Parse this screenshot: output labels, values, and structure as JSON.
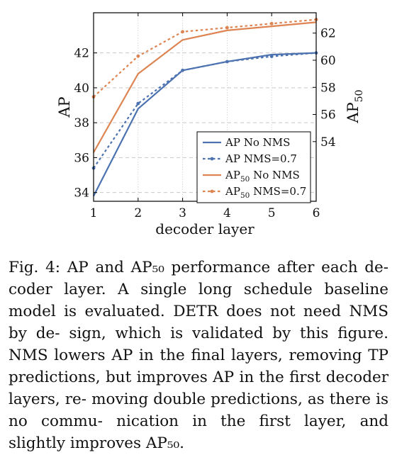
{
  "chart_data": {
    "type": "line",
    "x": [
      1,
      2,
      3,
      4,
      5,
      6
    ],
    "xlabel": "decoder layer",
    "ylabel_left": "AP",
    "ylabel_right_base": "AP",
    "ylabel_right_sub": "50",
    "xlim": [
      1,
      6
    ],
    "ylim_left": [
      33.5,
      44.3
    ],
    "ylim_right": [
      49.6,
      63.5
    ],
    "xticks": [
      "1",
      "2",
      "3",
      "4",
      "5",
      "6"
    ],
    "yticks_left": [
      "34",
      "36",
      "38",
      "40",
      "42"
    ],
    "yticks_right": [
      "54",
      "56",
      "58",
      "60",
      "62"
    ],
    "grid": "horizontal dashed",
    "legend_position": "bottom-right",
    "series": [
      {
        "name": "AP No NMS",
        "legend_base": "AP",
        "legend_sub": "",
        "legend_rest": " No NMS",
        "axis": "left",
        "style": "solid",
        "color": "#4c72b0",
        "values": [
          33.8,
          38.8,
          41.0,
          41.5,
          41.9,
          42.0
        ]
      },
      {
        "name": "AP NMS=0.7",
        "legend_base": "AP",
        "legend_sub": "",
        "legend_rest": " NMS=0.7",
        "axis": "left",
        "style": "dotted",
        "color": "#4c72b0",
        "values": [
          35.4,
          39.1,
          41.0,
          41.5,
          41.8,
          42.0
        ]
      },
      {
        "name": "AP50 No NMS",
        "legend_base": "AP",
        "legend_sub": "50",
        "legend_rest": " No NMS",
        "axis": "right",
        "style": "solid",
        "color": "#dd8452",
        "values": [
          53.2,
          59.0,
          61.5,
          62.2,
          62.5,
          62.8
        ]
      },
      {
        "name": "AP50 NMS=0.7",
        "legend_base": "AP",
        "legend_sub": "50",
        "legend_rest": " NMS=0.7",
        "axis": "right",
        "style": "dotted",
        "color": "#dd8452",
        "values": [
          57.3,
          60.3,
          62.1,
          62.4,
          62.7,
          63.0
        ]
      }
    ]
  },
  "caption": {
    "label": "Fig. 4:",
    "lines": [
      "AP and AP₅₀ performance after each de-",
      "coder layer. A single long schedule baseline model",
      "is evaluated. DETR does not need NMS by de-",
      "sign, which is validated by this figure. NMS lowers",
      "AP in the final layers, removing TP predictions,",
      "but improves AP in the first decoder layers, re-",
      "moving double predictions, as there is no commu-",
      "nication in the first layer, and slightly improves",
      "AP₅₀."
    ]
  }
}
